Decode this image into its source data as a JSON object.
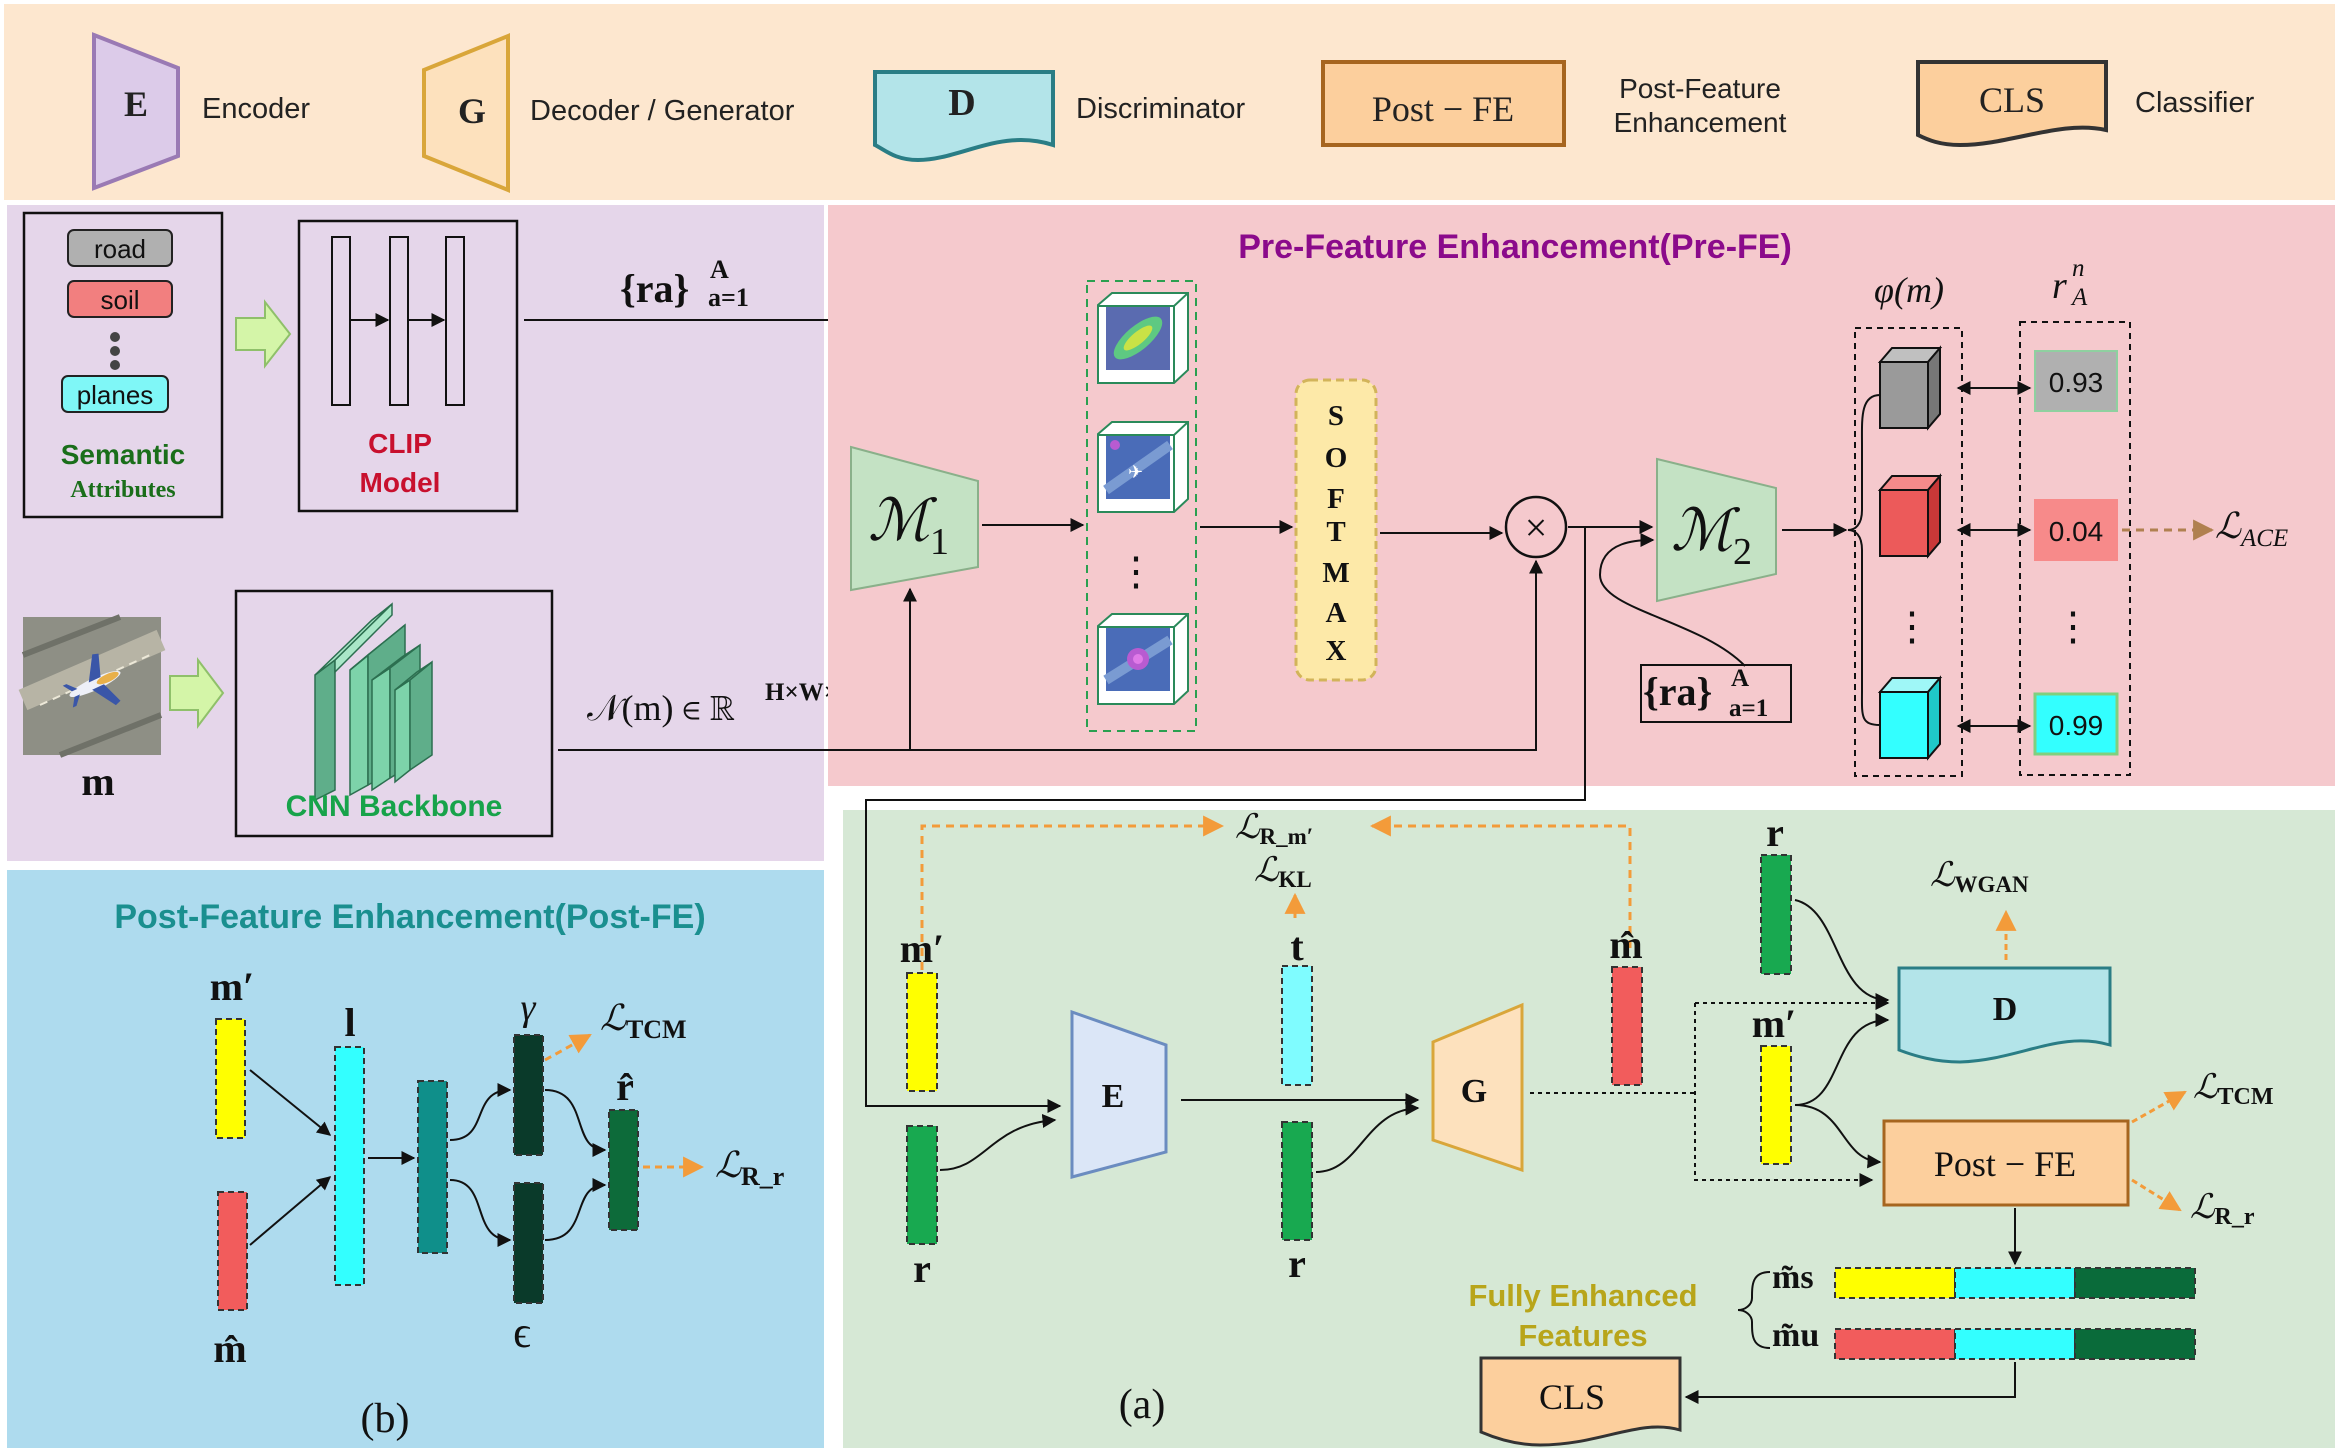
{
  "legend": {
    "encoder_symbol": "E",
    "encoder_label": "Encoder",
    "decoder_symbol": "G",
    "decoder_label": "Decoder / Generator",
    "disc_symbol": "D",
    "disc_label": "Discriminator",
    "postfe_symbol": "Post − FE",
    "postfe_label_1": "Post-Feature",
    "postfe_label_2": "Enhancement",
    "cls_symbol": "CLS",
    "cls_label": "Classifier"
  },
  "left": {
    "attr_road": "road",
    "attr_soil": "soil",
    "attr_planes": "planes",
    "semantic_1": "Semantic",
    "semantic_2": "Attributes",
    "clip_1": "CLIP",
    "clip_2": "Model",
    "cnn_label": "CNN Backbone",
    "image_label": "m",
    "ra_label": "{ra}",
    "ra_sup": "A",
    "ra_sub": "a=1",
    "feat_label": "𝒩(m) ∈ ℝ",
    "feat_sup": "H×W×C"
  },
  "prefe": {
    "title": "Pre-Feature Enhancement(Pre-FE)",
    "m1": "ℳ",
    "m1_sub": "1",
    "m2": "ℳ",
    "m2_sub": "2",
    "softmax": [
      "S",
      "O",
      "F",
      "T",
      "M",
      "A",
      "X"
    ],
    "times": "×",
    "phi_label": "φ(m)",
    "rn_label": "r",
    "rn_sup": "n",
    "rn_sub": "A",
    "val_1": "0.93",
    "val_2": "0.04",
    "val_3": "0.99",
    "loss_ace": "ℒ",
    "loss_ace_sub": "ACE",
    "ra2_label": "{ra}",
    "ra2_sup": "A",
    "ra2_sub": "a=1",
    "dots": "⋮"
  },
  "postfe": {
    "title": "Post-Feature Enhancement(Post-FE)",
    "m_prime": "m′",
    "m_hat": "m̂",
    "l": "l",
    "gamma": "γ",
    "epsilon": "ϵ",
    "r_hat": "r̂",
    "loss_tcm": "ℒ",
    "loss_tcm_sub": "TCM",
    "loss_rr": "ℒ",
    "loss_rr_sub": "R_r",
    "caption": "(b)"
  },
  "main": {
    "loss_rm": "ℒ",
    "loss_rm_sub": "R_m′",
    "loss_kl": "ℒ",
    "loss_kl_sub": "KL",
    "m_prime": "m′",
    "r": "r",
    "t": "t",
    "m_hat": "m̂",
    "e_symbol": "E",
    "g_symbol": "G",
    "r_top": "r",
    "m_prime2": "m′",
    "loss_wgan": "ℒ",
    "loss_wgan_sub": "WGAN",
    "d_symbol": "D",
    "postfe_symbol": "Post − FE",
    "loss_tcm": "ℒ",
    "loss_tcm_sub": "TCM",
    "loss_rr": "ℒ",
    "loss_rr_sub": "R_r",
    "ms_label": "m̃s",
    "mu_label": "m̃u",
    "fully_1": "Fully Enhanced",
    "fully_2": "Features",
    "cls_symbol": "CLS",
    "caption": "(a)"
  },
  "colors": {
    "legend_bg": "#fde7cf",
    "left_bg": "#e5d6ea",
    "prefe_bg": "#f5c9cd",
    "postfe_bg": "#aedbee",
    "main_bg": "#d6e8d5",
    "encoder_purple": "#dccbe9",
    "decoder_orange": "#fde1bd",
    "disc_teal": "#b3e4e9",
    "postfe_orange": "#fccf9d",
    "yellow": "#ffff00",
    "cyan": "#33ffff",
    "green": "#18a950",
    "dark_green": "#0a5a2b",
    "red": "#f25c5c",
    "orange_dash": "#f39b3a"
  }
}
